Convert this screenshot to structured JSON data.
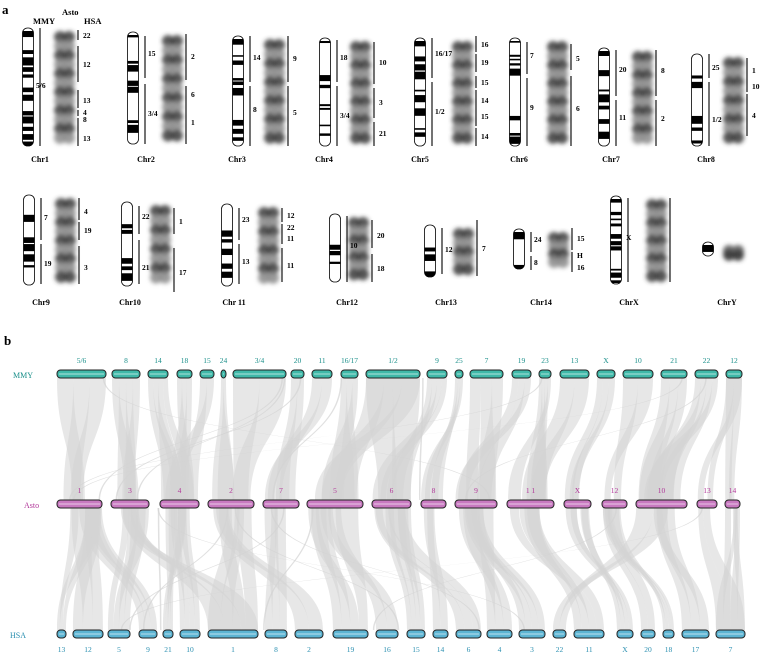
{
  "panel_a": {
    "label": "a",
    "header": {
      "mmy": "MMY",
      "asto": "Asto",
      "hsa": "HSA"
    },
    "chromosomes": [
      {
        "name": "Chr1",
        "mmy": [
          "5/6"
        ],
        "hsa": [
          "22",
          "12",
          "13",
          "4",
          "8",
          "13"
        ]
      },
      {
        "name": "Chr2",
        "mmy": [
          "15",
          "3/4"
        ],
        "hsa": [
          "2",
          "6",
          "1"
        ]
      },
      {
        "name": "Chr3",
        "mmy": [
          "14",
          "8"
        ],
        "hsa": [
          "9",
          "5"
        ]
      },
      {
        "name": "Chr4",
        "mmy": [
          "18",
          "3/4"
        ],
        "hsa": [
          "10",
          "3",
          "21"
        ]
      },
      {
        "name": "Chr5",
        "mmy": [
          "16/17",
          "1/2"
        ],
        "hsa": [
          "16",
          "19",
          "15",
          "14",
          "15",
          "14"
        ]
      },
      {
        "name": "Chr6",
        "mmy": [
          "7",
          "9"
        ],
        "hsa": [
          "5",
          "6"
        ]
      },
      {
        "name": "Chr7",
        "mmy": [
          "20",
          "11"
        ],
        "hsa": [
          "8",
          "2"
        ]
      },
      {
        "name": "Chr8",
        "mmy": [
          "25",
          "1/2"
        ],
        "hsa": [
          "1",
          "10",
          "4"
        ]
      },
      {
        "name": "Chr9",
        "mmy": [
          "7",
          "19"
        ],
        "hsa": [
          "4",
          "19",
          "3"
        ]
      },
      {
        "name": "Chr10",
        "mmy": [
          "22",
          "21"
        ],
        "hsa": [
          "1",
          "17"
        ]
      },
      {
        "name": "Chr 11",
        "mmy": [
          "23",
          "13"
        ],
        "hsa": [
          "12",
          "22",
          "11",
          "11"
        ]
      },
      {
        "name": "Chr12",
        "mmy": [
          "10"
        ],
        "hsa": [
          "20",
          "18"
        ]
      },
      {
        "name": "Chr13",
        "mmy": [
          "12"
        ],
        "hsa": [
          "7"
        ]
      },
      {
        "name": "Chr14",
        "mmy": [
          "24",
          "8"
        ],
        "hsa": [
          "15",
          "H",
          "16"
        ]
      },
      {
        "name": "ChrX",
        "mmy": [
          "X"
        ],
        "hsa": []
      },
      {
        "name": "ChrY",
        "mmy": [],
        "hsa": []
      }
    ]
  },
  "panel_b": {
    "label": "b",
    "tracks": [
      {
        "name": "MMY",
        "color": "#1a8f8a",
        "bar_fill": "#3fb8a8",
        "chromosomes": [
          "5/6",
          "8",
          "14",
          "18",
          "15",
          "24",
          "3/4",
          "20",
          "11",
          "16/17",
          "1/2",
          "9",
          "25",
          "7",
          "19",
          "23",
          "13",
          "X",
          "10",
          "21",
          "22",
          "12"
        ]
      },
      {
        "name": "Asto",
        "color": "#b2389a",
        "bar_fill": "#c879c0",
        "chromosomes": [
          "1",
          "3",
          "4",
          "2",
          "7",
          "5",
          "6",
          "8",
          "9",
          "1 1",
          "X",
          "12",
          "10",
          "13",
          "14"
        ]
      },
      {
        "name": "HSA",
        "color": "#2a8fb0",
        "bar_fill": "#5cb4d2",
        "chromosomes": [
          "13",
          "12",
          "5",
          "9",
          "21",
          "10",
          "1",
          "8",
          "2",
          "19",
          "16",
          "15",
          "14",
          "6",
          "4",
          "3",
          "22",
          "11",
          "X",
          "20",
          "18",
          "17",
          "7"
        ]
      }
    ],
    "link_color": "#d3d3d3"
  }
}
